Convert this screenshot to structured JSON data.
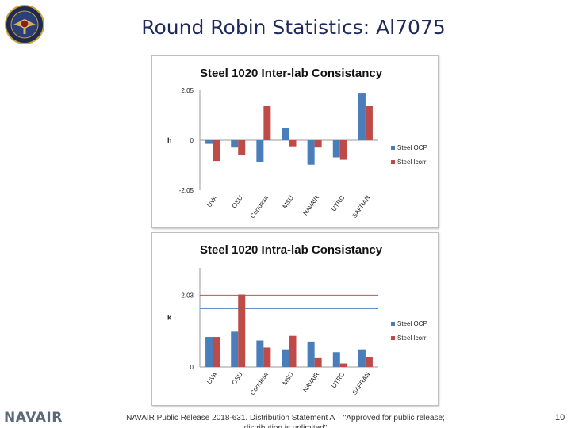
{
  "slide": {
    "title": "Round Robin Statistics: Al7075",
    "footer_brand": "NAVAIR",
    "footer_note": "NAVAIR Public Release 2018-631. Distribution Statement A – \"Approved for public release; distribution is unlimited\"",
    "page_number": "10",
    "logo_icon": "navy-seal-emblem-icon"
  },
  "colors": {
    "ocp": "#4a7ebb",
    "icorr": "#be4b48",
    "title_text": "#1f2a5a",
    "k_line_top": "#c0504d",
    "k_line_mid": "#4f81bd"
  },
  "chart_data": [
    {
      "type": "bar",
      "title": "Steel 1020 Inter-lab Consistancy",
      "ylabel": "h",
      "xlabel": "",
      "ylim": [
        -2.05,
        2.05
      ],
      "y_ticks": [
        "2.05",
        "0",
        "-2.05"
      ],
      "categories": [
        "UVA",
        "OSU",
        "Corrdesa",
        "MSU",
        "NAVAIR",
        "UTRC",
        "SAFRAN"
      ],
      "series": [
        {
          "name": "Steel OCP",
          "values": [
            -0.15,
            -0.3,
            -0.9,
            0.5,
            -1.0,
            -0.7,
            1.95
          ]
        },
        {
          "name": "Steel Icorr",
          "values": [
            -0.85,
            -0.6,
            1.4,
            -0.25,
            -0.3,
            -0.8,
            1.4
          ]
        }
      ],
      "legend": "right",
      "grid": false
    },
    {
      "type": "bar",
      "title": "Steel 1020 Intra-lab Consistancy",
      "ylabel": "k",
      "xlabel": "",
      "ylim": [
        0,
        2.8
      ],
      "y_ticks": [
        "2.03",
        "0"
      ],
      "critical_k": 2.03,
      "secondary_line": 1.65,
      "categories": [
        "UVA",
        "OSU",
        "Corrdesa",
        "MSU",
        "NAVAIR",
        "UTRC",
        "SAFRAN"
      ],
      "series": [
        {
          "name": "Steel OCP",
          "values": [
            0.85,
            1.0,
            0.75,
            0.5,
            0.72,
            0.42,
            0.5
          ]
        },
        {
          "name": "Steel Icorr",
          "values": [
            0.85,
            2.05,
            0.55,
            0.88,
            0.25,
            0.1,
            0.28
          ]
        }
      ],
      "legend": "right",
      "grid": false
    }
  ]
}
